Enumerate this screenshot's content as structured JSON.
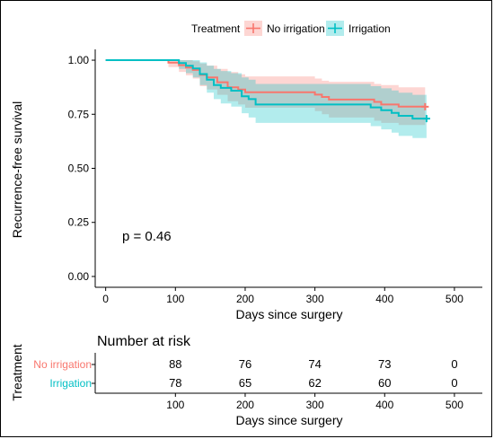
{
  "chart_data": [
    {
      "type": "line",
      "subtype": "kaplan-meier",
      "legend": {
        "title": "Treatment",
        "position": "top",
        "entries": [
          "No irrigation",
          "Irrigation"
        ]
      },
      "xlabel": "Days since surgery",
      "ylabel": "Recurrence-free survival",
      "xlim": [
        -15,
        540
      ],
      "ylim": [
        -0.05,
        1.05
      ],
      "x_ticks": [
        0,
        100,
        200,
        300,
        400,
        500
      ],
      "x_tick_labels": [
        "0",
        "100",
        "200",
        "300",
        "400",
        "500"
      ],
      "y_ticks": [
        0.0,
        0.25,
        0.5,
        0.75,
        1.0
      ],
      "y_tick_labels": [
        "0.00",
        "0.25",
        "0.50",
        "0.75",
        "1.00"
      ],
      "annotation": "p = 0.46",
      "grid": false,
      "series": [
        {
          "name": "No irrigation",
          "color": "#F8766D",
          "band_color": "#F8766D",
          "steps": [
            [
              0,
              1.0
            ],
            [
              90,
              0.989
            ],
            [
              105,
              0.977
            ],
            [
              115,
              0.966
            ],
            [
              125,
              0.955
            ],
            [
              135,
              0.932
            ],
            [
              145,
              0.92
            ],
            [
              160,
              0.898
            ],
            [
              175,
              0.875
            ],
            [
              190,
              0.864
            ],
            [
              200,
              0.852
            ],
            [
              300,
              0.841
            ],
            [
              310,
              0.83
            ],
            [
              320,
              0.818
            ],
            [
              385,
              0.807
            ],
            [
              395,
              0.795
            ],
            [
              420,
              0.785
            ],
            [
              458,
              0.785
            ]
          ],
          "lower": [
            [
              0,
              1.0
            ],
            [
              90,
              0.968
            ],
            [
              105,
              0.946
            ],
            [
              115,
              0.93
            ],
            [
              125,
              0.915
            ],
            [
              135,
              0.88
            ],
            [
              145,
              0.865
            ],
            [
              160,
              0.84
            ],
            [
              175,
              0.81
            ],
            [
              190,
              0.795
            ],
            [
              200,
              0.78
            ],
            [
              300,
              0.765
            ],
            [
              310,
              0.75
            ],
            [
              320,
              0.735
            ],
            [
              385,
              0.72
            ],
            [
              395,
              0.71
            ],
            [
              420,
              0.7
            ],
            [
              458,
              0.7
            ]
          ],
          "upper": [
            [
              0,
              1.0
            ],
            [
              90,
              1.0
            ],
            [
              105,
              1.0
            ],
            [
              115,
              1.0
            ],
            [
              125,
              0.995
            ],
            [
              135,
              0.985
            ],
            [
              145,
              0.975
            ],
            [
              160,
              0.96
            ],
            [
              175,
              0.945
            ],
            [
              190,
              0.935
            ],
            [
              200,
              0.925
            ],
            [
              300,
              0.915
            ],
            [
              310,
              0.905
            ],
            [
              320,
              0.9
            ],
            [
              385,
              0.89
            ],
            [
              395,
              0.885
            ],
            [
              420,
              0.875
            ],
            [
              458,
              0.875
            ]
          ],
          "censor": [
            [
              458,
              0.785
            ]
          ]
        },
        {
          "name": "Irrigation",
          "color": "#00BFC4",
          "band_color": "#00BFC4",
          "steps": [
            [
              0,
              1.0
            ],
            [
              105,
              0.987
            ],
            [
              115,
              0.974
            ],
            [
              125,
              0.962
            ],
            [
              135,
              0.936
            ],
            [
              145,
              0.91
            ],
            [
              155,
              0.885
            ],
            [
              165,
              0.872
            ],
            [
              180,
              0.859
            ],
            [
              195,
              0.833
            ],
            [
              205,
              0.82
            ],
            [
              215,
              0.795
            ],
            [
              380,
              0.782
            ],
            [
              395,
              0.769
            ],
            [
              410,
              0.756
            ],
            [
              420,
              0.743
            ],
            [
              440,
              0.73
            ],
            [
              460,
              0.73
            ]
          ],
          "lower": [
            [
              0,
              1.0
            ],
            [
              105,
              0.96
            ],
            [
              115,
              0.94
            ],
            [
              125,
              0.92
            ],
            [
              135,
              0.885
            ],
            [
              145,
              0.85
            ],
            [
              155,
              0.82
            ],
            [
              165,
              0.8
            ],
            [
              180,
              0.785
            ],
            [
              195,
              0.755
            ],
            [
              205,
              0.735
            ],
            [
              215,
              0.71
            ],
            [
              380,
              0.695
            ],
            [
              395,
              0.68
            ],
            [
              410,
              0.665
            ],
            [
              420,
              0.65
            ],
            [
              440,
              0.64
            ],
            [
              460,
              0.64
            ]
          ],
          "upper": [
            [
              0,
              1.0
            ],
            [
              105,
              1.0
            ],
            [
              115,
              1.0
            ],
            [
              125,
              1.0
            ],
            [
              135,
              0.99
            ],
            [
              145,
              0.975
            ],
            [
              155,
              0.96
            ],
            [
              165,
              0.95
            ],
            [
              180,
              0.94
            ],
            [
              195,
              0.92
            ],
            [
              205,
              0.91
            ],
            [
              215,
              0.89
            ],
            [
              380,
              0.88
            ],
            [
              395,
              0.87
            ],
            [
              410,
              0.86
            ],
            [
              420,
              0.85
            ],
            [
              440,
              0.84
            ],
            [
              460,
              0.84
            ]
          ],
          "censor": [
            [
              460,
              0.73
            ]
          ]
        }
      ]
    },
    {
      "type": "table",
      "title": "Number at risk",
      "ylabel": "Treatment",
      "xlabel": "Days since surgery",
      "x_ticks": [
        100,
        200,
        300,
        400,
        500
      ],
      "x_tick_labels": [
        "100",
        "200",
        "300",
        "400",
        "500"
      ],
      "columns_x": [
        100,
        200,
        300,
        400,
        500
      ],
      "rows": [
        {
          "name": "No irrigation",
          "color": "#F8766D",
          "values": [
            "88",
            "76",
            "74",
            "73",
            "0"
          ]
        },
        {
          "name": "Irrigation",
          "color": "#00BFC4",
          "values": [
            "78",
            "65",
            "62",
            "60",
            "0"
          ]
        }
      ]
    }
  ]
}
